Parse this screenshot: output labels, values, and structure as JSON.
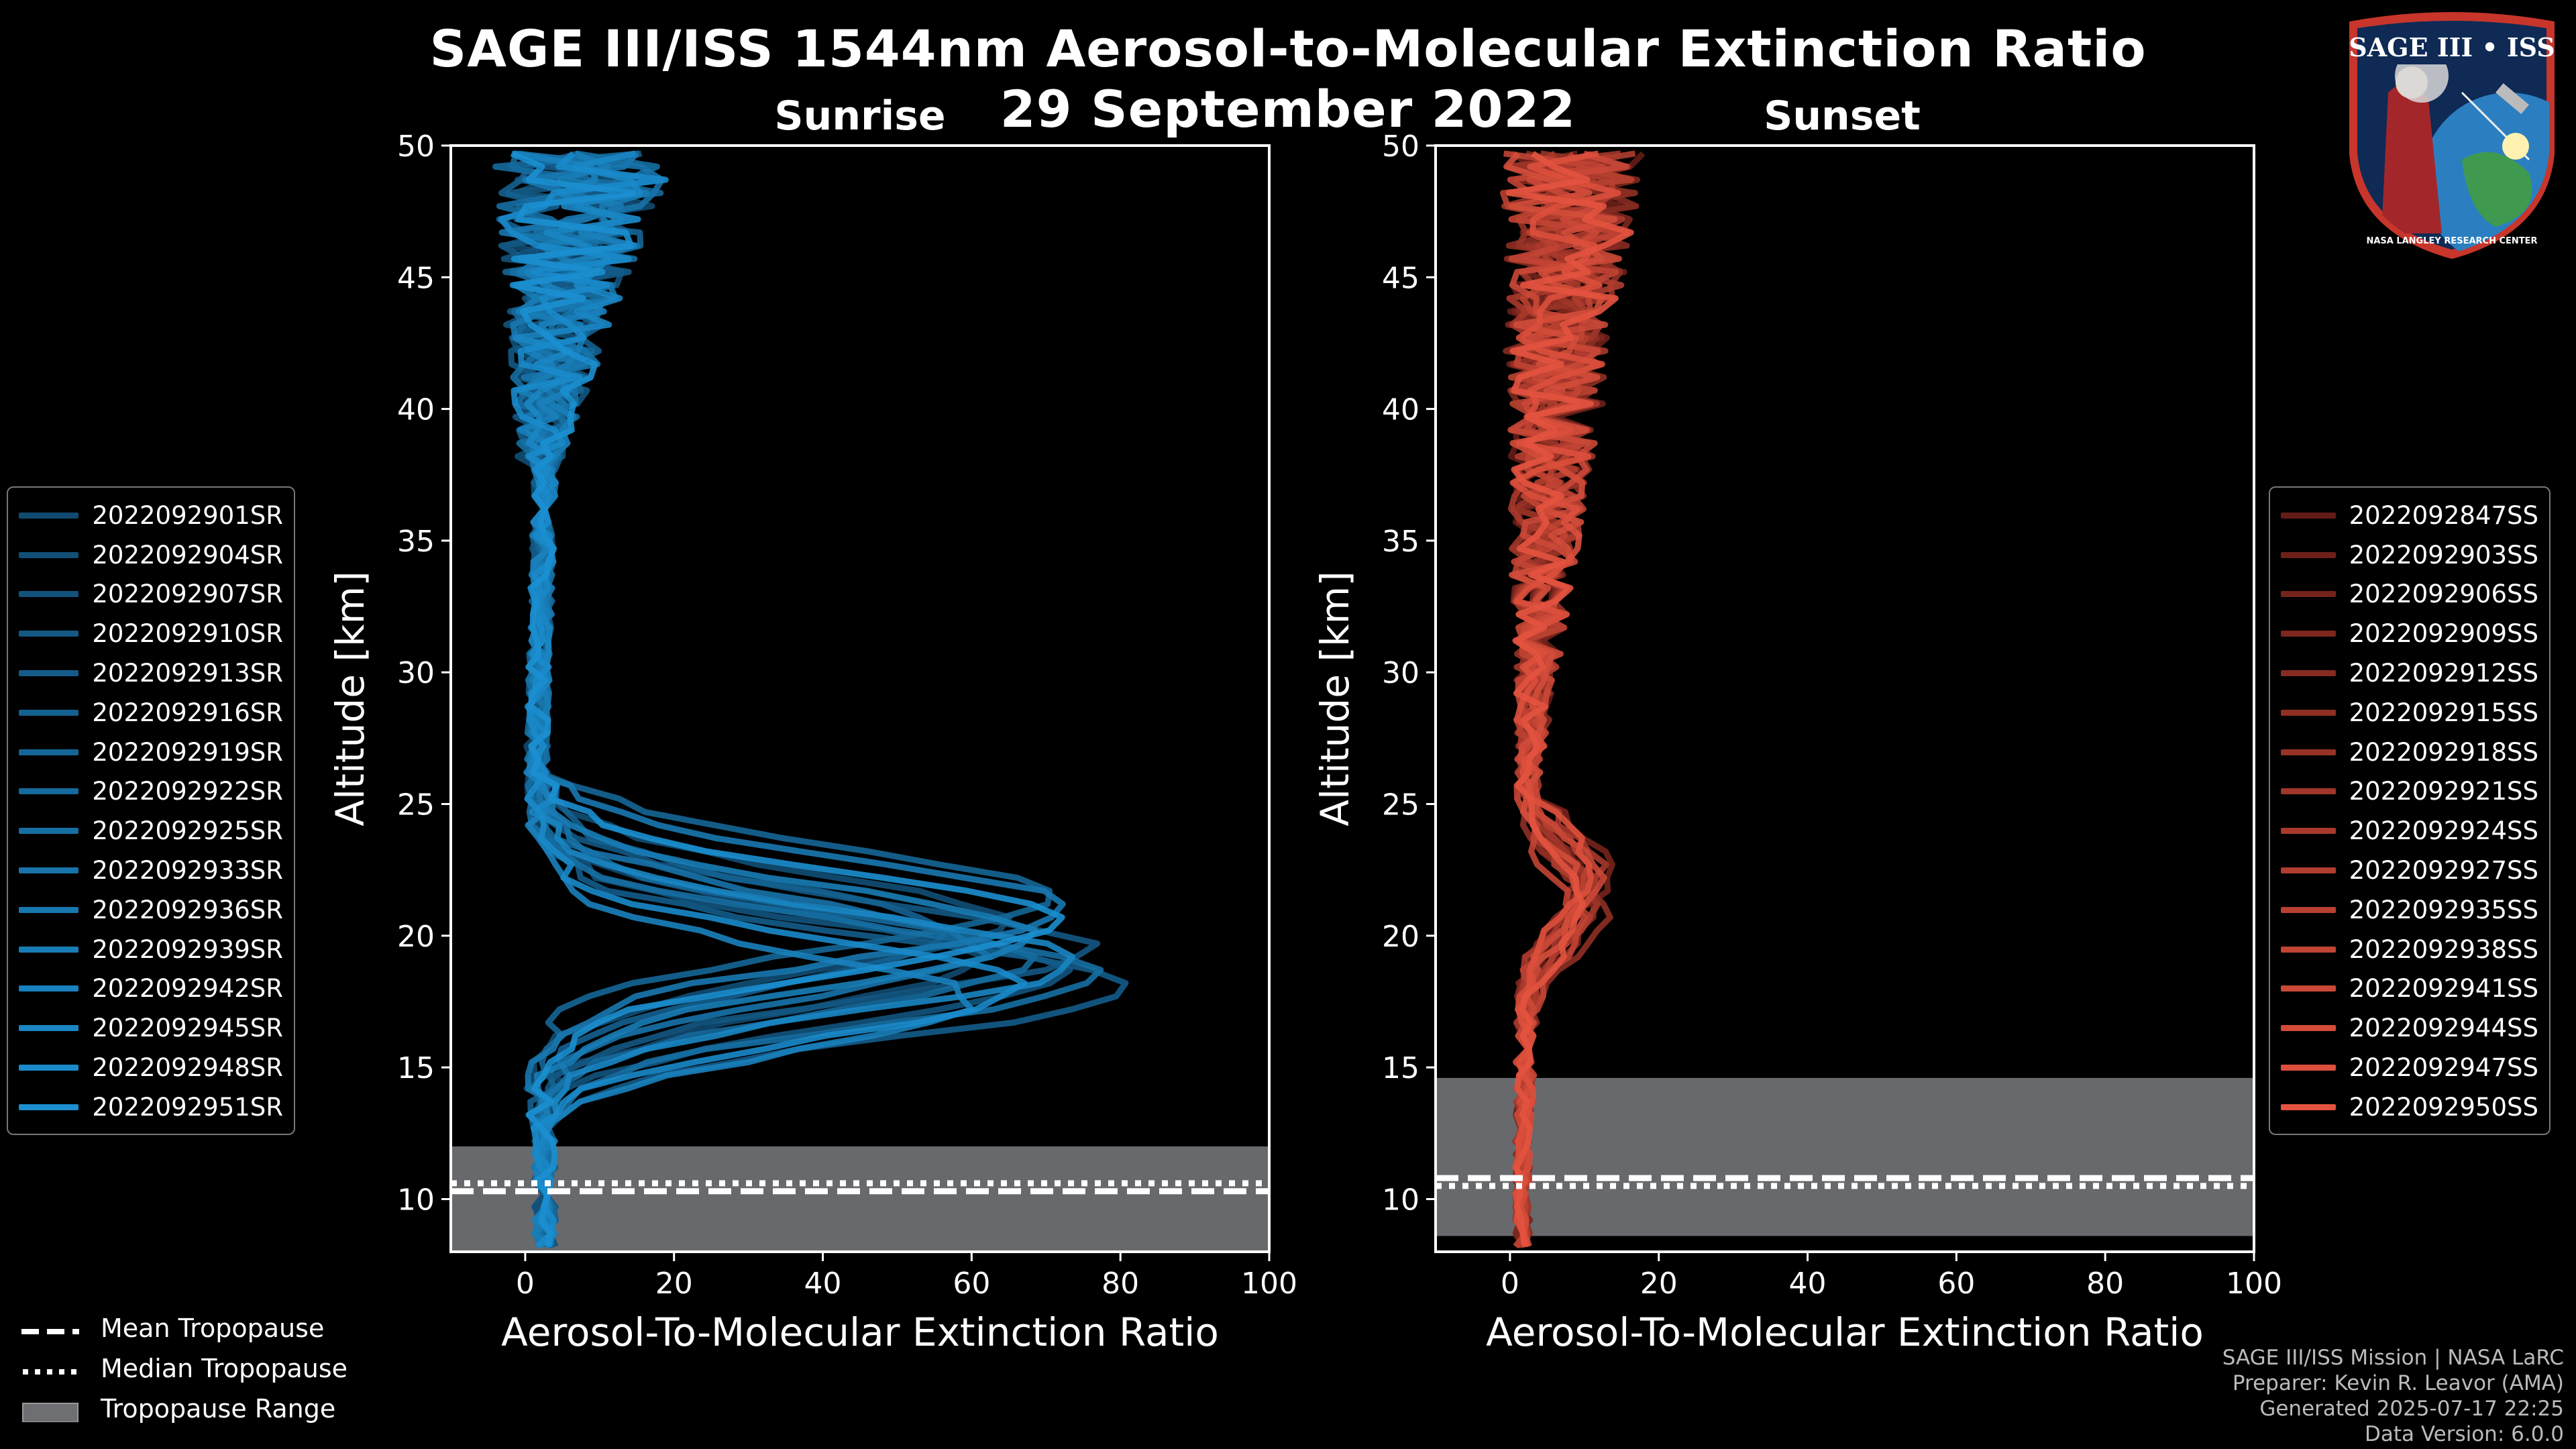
{
  "header": {
    "title_line1": "SAGE III/ISS 1544nm Aerosol-to-Molecular Extinction Ratio",
    "title_line2": "29 September 2022"
  },
  "logo": {
    "label": "SAGE III • ISS",
    "ring_text": "NASA LANGLEY RESEARCH CENTER",
    "icon": "mission-patch-icon"
  },
  "credits": {
    "line1": "SAGE III/ISS Mission | NASA LaRC",
    "line2": "Preparer: Kevin R. Leavor (AMA)",
    "line3": "Generated 2025-07-17 22:25",
    "line4": "Data Version: 6.0.0"
  },
  "bottom_legend": {
    "mean": "Mean Tropopause",
    "median": "Median Tropopause",
    "range": "Tropopause Range"
  },
  "colors": {
    "sunrise": "#1b8fd0",
    "sunset": "#e3533f",
    "tropo_band": "#6e6f72",
    "frame": "#ffffff"
  },
  "chart_data": [
    {
      "type": "line",
      "subtitle": "Sunrise",
      "xlabel": "Aerosol-To-Molecular Extinction Ratio",
      "ylabel": "Altitude [km]",
      "xlim": [
        -10,
        100
      ],
      "ylim": [
        8,
        50
      ],
      "xticks": [
        0,
        20,
        40,
        60,
        80,
        100
      ],
      "yticks": [
        10,
        15,
        20,
        25,
        30,
        35,
        40,
        45,
        50
      ],
      "tropopause": {
        "min": 8.0,
        "max": 12.0,
        "mean": 10.3,
        "median": 10.6
      },
      "series": [
        {
          "name": "2022092901SR",
          "peak_alt": 19.0,
          "peak_val": 58
        },
        {
          "name": "2022092904SR",
          "peak_alt": 20.5,
          "peak_val": 62
        },
        {
          "name": "2022092907SR",
          "peak_alt": 18.5,
          "peak_val": 70
        },
        {
          "name": "2022092910SR",
          "peak_alt": 19.5,
          "peak_val": 74
        },
        {
          "name": "2022092913SR",
          "peak_alt": 18.0,
          "peak_val": 80
        },
        {
          "name": "2022092916SR",
          "peak_alt": 20.0,
          "peak_val": 55
        },
        {
          "name": "2022092919SR",
          "peak_alt": 21.5,
          "peak_val": 68
        },
        {
          "name": "2022092922SR",
          "peak_alt": 19.0,
          "peak_val": 65
        },
        {
          "name": "2022092925SR",
          "peak_alt": 18.5,
          "peak_val": 76
        },
        {
          "name": "2022092933SR",
          "peak_alt": 19.5,
          "peak_val": 60
        },
        {
          "name": "2022092936SR",
          "peak_alt": 21.0,
          "peak_val": 71
        },
        {
          "name": "2022092939SR",
          "peak_alt": 20.0,
          "peak_val": 66
        },
        {
          "name": "2022092942SR",
          "peak_alt": 17.5,
          "peak_val": 58
        },
        {
          "name": "2022092945SR",
          "peak_alt": 19.0,
          "peak_val": 72
        },
        {
          "name": "2022092948SR",
          "peak_alt": 18.0,
          "peak_val": 64
        },
        {
          "name": "2022092951SR",
          "peak_alt": 20.5,
          "peak_val": 69
        }
      ]
    },
    {
      "type": "line",
      "subtitle": "Sunset",
      "xlabel": "Aerosol-To-Molecular Extinction Ratio",
      "ylabel": "Altitude [km]",
      "xlim": [
        -10,
        100
      ],
      "ylim": [
        8,
        50
      ],
      "xticks": [
        0,
        20,
        40,
        60,
        80,
        100
      ],
      "yticks": [
        10,
        15,
        20,
        25,
        30,
        35,
        40,
        45,
        50
      ],
      "tropopause": {
        "min": 8.6,
        "max": 14.6,
        "mean": 10.8,
        "median": 10.5
      },
      "series": [
        {
          "name": "2022092847SS",
          "peak_alt": 22.0,
          "peak_val": 8
        },
        {
          "name": "2022092903SS",
          "peak_alt": 21.5,
          "peak_val": 10
        },
        {
          "name": "2022092906SS",
          "peak_alt": 22.5,
          "peak_val": 12
        },
        {
          "name": "2022092909SS",
          "peak_alt": 21.0,
          "peak_val": 9
        },
        {
          "name": "2022092912SS",
          "peak_alt": 22.0,
          "peak_val": 7
        },
        {
          "name": "2022092915SS",
          "peak_alt": 20.5,
          "peak_val": 11
        },
        {
          "name": "2022092918SS",
          "peak_alt": 22.0,
          "peak_val": 8
        },
        {
          "name": "2022092921SS",
          "peak_alt": 21.5,
          "peak_val": 9
        },
        {
          "name": "2022092924SS",
          "peak_alt": 22.5,
          "peak_val": 10
        },
        {
          "name": "2022092927SS",
          "peak_alt": 21.0,
          "peak_val": 8
        },
        {
          "name": "2022092935SS",
          "peak_alt": 22.0,
          "peak_val": 9
        },
        {
          "name": "2022092938SS",
          "peak_alt": 20.5,
          "peak_val": 7
        },
        {
          "name": "2022092941SS",
          "peak_alt": 22.0,
          "peak_val": 10
        },
        {
          "name": "2022092944SS",
          "peak_alt": 21.5,
          "peak_val": 8
        },
        {
          "name": "2022092947SS",
          "peak_alt": 22.5,
          "peak_val": 9
        },
        {
          "name": "2022092950SS",
          "peak_alt": 21.0,
          "peak_val": 8
        }
      ]
    }
  ]
}
